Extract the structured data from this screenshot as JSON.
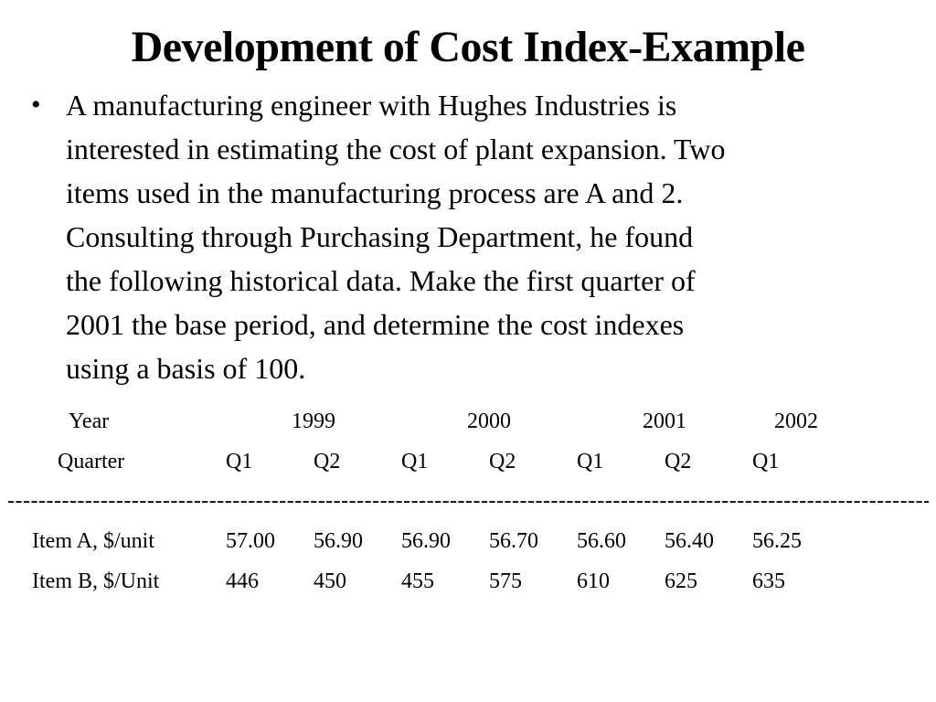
{
  "slide": {
    "title": "Development of Cost Index-Example",
    "bullet_marker": "•",
    "bullet_lines": [
      "A manufacturing engineer with Hughes Industries is",
      "interested in estimating the cost of plant expansion. Two",
      "items used in the manufacturing process are A and 2.",
      "Consulting through  Purchasing Department, he found",
      "the following historical data. Make the first quarter of",
      "2001 the base period, and determine the cost indexes",
      "using a basis of 100."
    ],
    "table": {
      "year_label": "Year",
      "quarter_label": "Quarter",
      "years": [
        "1999",
        "2000",
        "2001",
        "2002"
      ],
      "quarters": [
        "Q1",
        "Q2",
        "Q1",
        "Q2",
        "Q1",
        "Q2",
        "Q1"
      ],
      "separator": "--------------------------------------------------------------------------------------------------------------------------------------------",
      "rows": [
        {
          "label": "Item A, $/unit",
          "values": [
            "57.00",
            "56.90",
            "56.90",
            "56.70",
            "56.60",
            "56.40",
            "56.25"
          ]
        },
        {
          "label": "Item B, $/Unit",
          "values": [
            "446",
            "450",
            "455",
            "575",
            "610",
            "625",
            "635"
          ]
        }
      ]
    }
  }
}
